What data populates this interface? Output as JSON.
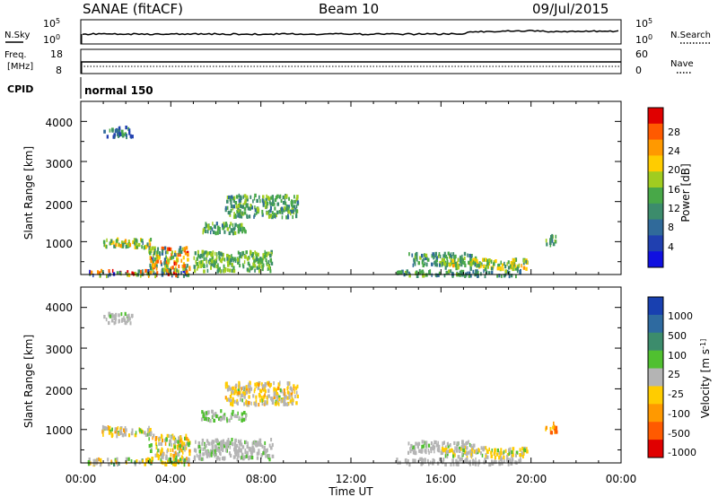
{
  "header": {
    "station": "SANAE (fitACF)",
    "beam": "Beam 10",
    "date": "09/Jul/2015"
  },
  "strip1": {
    "left_label": "N.Sky",
    "right_label": "N.Search",
    "left_ticks": [
      "10^5",
      "10^0"
    ],
    "right_ticks": [
      "10^5",
      "10^0"
    ]
  },
  "strip2": {
    "left_label_1": "Freq.",
    "left_label_2": "[MHz]",
    "right_label": "Nave",
    "left_ticks": [
      "18",
      "8"
    ],
    "right_ticks": [
      "60",
      "0"
    ]
  },
  "strip3": {
    "left_label": "CPID",
    "mode_text": "normal 150"
  },
  "colors": {
    "power_scale": [
      "#1010e0",
      "#2040b0",
      "#306a9a",
      "#3c8c6c",
      "#48a848",
      "#a0cc20",
      "#ffcc00",
      "#ff9900",
      "#ff5a00",
      "#e00000"
    ],
    "velocity_scale": [
      "#1840b0",
      "#2e6aa0",
      "#3c8c6c",
      "#50c030",
      "#b4b4b4",
      "#ffcc00",
      "#ff9900",
      "#ff5a00",
      "#e00000"
    ]
  },
  "chart_data": [
    {
      "type": "heatmap",
      "ylabel": "Slant Range [km]",
      "xlabel": "",
      "ylim": [
        180,
        4500
      ],
      "xlim": [
        0,
        24
      ],
      "y_ticks": [
        "1000",
        "2000",
        "3000",
        "4000"
      ],
      "colorbar": {
        "label": "Power [dB]",
        "ticks": [
          "4",
          "8",
          "12",
          "16",
          "20",
          "24",
          "28"
        ],
        "range": [
          0,
          30
        ]
      },
      "regions": [
        {
          "t": [
            0.3,
            4.8
          ],
          "r": [
            180,
            320
          ],
          "value_range": [
            2,
            30
          ]
        },
        {
          "t": [
            0.9,
            3.1
          ],
          "r": [
            880,
            1110
          ],
          "value_range": [
            8,
            22
          ]
        },
        {
          "t": [
            3.0,
            4.8
          ],
          "r": [
            300,
            900
          ],
          "value_range": [
            8,
            28
          ]
        },
        {
          "t": [
            1.0,
            2.3
          ],
          "r": [
            3650,
            3900
          ],
          "value_range": [
            4,
            14
          ]
        },
        {
          "t": [
            6.4,
            9.6
          ],
          "r": [
            1650,
            2200
          ],
          "value_range": [
            8,
            18
          ]
        },
        {
          "t": [
            5.3,
            7.3
          ],
          "r": [
            1250,
            1500
          ],
          "value_range": [
            8,
            16
          ]
        },
        {
          "t": [
            5.0,
            8.5
          ],
          "r": [
            300,
            800
          ],
          "value_range": [
            10,
            18
          ]
        },
        {
          "t": [
            14.5,
            17.5
          ],
          "r": [
            450,
            750
          ],
          "value_range": [
            8,
            16
          ]
        },
        {
          "t": [
            16.0,
            19.8
          ],
          "r": [
            350,
            600
          ],
          "value_range": [
            10,
            22
          ]
        },
        {
          "t": [
            14.0,
            19.5
          ],
          "r": [
            180,
            320
          ],
          "value_range": [
            6,
            16
          ]
        },
        {
          "t": [
            20.6,
            21.1
          ],
          "r": [
            950,
            1200
          ],
          "value_range": [
            8,
            16
          ]
        }
      ]
    },
    {
      "type": "heatmap",
      "ylabel": "Slant Range [km]",
      "xlabel": "Time UT",
      "ylim": [
        180,
        4500
      ],
      "xlim": [
        0,
        24
      ],
      "x_ticks": [
        "00:00",
        "04:00",
        "08:00",
        "12:00",
        "16:00",
        "20:00",
        "00:00"
      ],
      "y_ticks": [
        "1000",
        "2000",
        "3000",
        "4000"
      ],
      "colorbar": {
        "label": "Velocity [m s^-1]",
        "ticks": [
          "1000",
          "500",
          "100",
          "25",
          "-25",
          "-100",
          "-500",
          "-1000"
        ],
        "range": [
          -1200,
          1200
        ]
      },
      "regions": [
        {
          "t": [
            0.3,
            4.8
          ],
          "r": [
            180,
            320
          ],
          "value_range": [
            -500,
            500
          ]
        },
        {
          "t": [
            0.9,
            3.1
          ],
          "r": [
            880,
            1110
          ],
          "value_range": [
            -500,
            300
          ]
        },
        {
          "t": [
            3.0,
            4.8
          ],
          "r": [
            300,
            900
          ],
          "value_range": [
            -600,
            300
          ]
        },
        {
          "t": [
            1.0,
            2.3
          ],
          "r": [
            3650,
            3900
          ],
          "value_range": [
            25,
            150
          ]
        },
        {
          "t": [
            6.4,
            9.6
          ],
          "r": [
            1650,
            2200
          ],
          "value_range": [
            -500,
            150
          ]
        },
        {
          "t": [
            5.3,
            7.3
          ],
          "r": [
            1250,
            1500
          ],
          "value_range": [
            25,
            200
          ]
        },
        {
          "t": [
            5.0,
            8.5
          ],
          "r": [
            300,
            800
          ],
          "value_range": [
            25,
            150
          ]
        },
        {
          "t": [
            14.5,
            17.5
          ],
          "r": [
            450,
            750
          ],
          "value_range": [
            -50,
            150
          ]
        },
        {
          "t": [
            16.0,
            19.8
          ],
          "r": [
            350,
            600
          ],
          "value_range": [
            -400,
            200
          ]
        },
        {
          "t": [
            14.0,
            19.5
          ],
          "r": [
            180,
            320
          ],
          "value_range": [
            -30,
            60
          ]
        },
        {
          "t": [
            20.6,
            21.1
          ],
          "r": [
            950,
            1200
          ],
          "value_range": [
            -1000,
            -300
          ]
        }
      ]
    }
  ]
}
